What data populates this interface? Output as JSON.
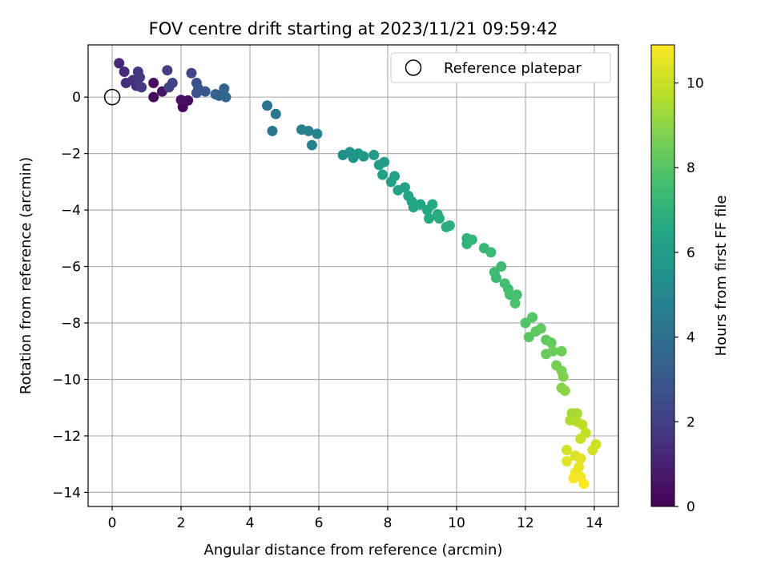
{
  "chart_data": {
    "type": "scatter",
    "title": "FOV centre drift starting at 2023/11/21 09:59:42",
    "xlabel": "Angular distance from reference (arcmin)",
    "ylabel": "Rotation from reference (arcmin)",
    "xlim": [
      -0.7,
      14.7
    ],
    "ylim": [
      -14.5,
      1.85
    ],
    "xticks": [
      0,
      2,
      4,
      6,
      8,
      10,
      12,
      14
    ],
    "yticks": [
      0,
      -2,
      -4,
      -6,
      -8,
      -10,
      -12,
      -14
    ],
    "grid": true,
    "legend": {
      "label": "Reference platepar",
      "placement": "upper right"
    },
    "reference_point": {
      "x": 0,
      "y": 0
    },
    "colorbar": {
      "label": "Hours from first FF file",
      "range": [
        0,
        10.9
      ],
      "ticks": [
        0,
        2,
        4,
        6,
        8,
        10
      ],
      "colormap": "viridis"
    },
    "points": [
      {
        "x": 1.2,
        "y": 0.0,
        "h": 0.3
      },
      {
        "x": 1.2,
        "y": 0.5,
        "h": 0.4
      },
      {
        "x": 1.45,
        "y": 0.2,
        "h": 0.6
      },
      {
        "x": 2.05,
        "y": -0.35,
        "h": 0.2
      },
      {
        "x": 2.1,
        "y": -0.15,
        "h": 0.3
      },
      {
        "x": 2.2,
        "y": -0.12,
        "h": 0.4
      },
      {
        "x": 2.0,
        "y": -0.1,
        "h": 0.5
      },
      {
        "x": 0.2,
        "y": 1.2,
        "h": 1.2
      },
      {
        "x": 0.35,
        "y": 0.9,
        "h": 1.3
      },
      {
        "x": 0.4,
        "y": 0.5,
        "h": 1.4
      },
      {
        "x": 0.6,
        "y": 0.6,
        "h": 1.5
      },
      {
        "x": 0.7,
        "y": 0.4,
        "h": 1.6
      },
      {
        "x": 0.75,
        "y": 0.9,
        "h": 1.7
      },
      {
        "x": 0.8,
        "y": 0.7,
        "h": 1.8
      },
      {
        "x": 0.85,
        "y": 0.35,
        "h": 1.9
      },
      {
        "x": 1.6,
        "y": 0.95,
        "h": 2.0
      },
      {
        "x": 1.65,
        "y": 0.35,
        "h": 2.1
      },
      {
        "x": 1.75,
        "y": 0.5,
        "h": 2.2
      },
      {
        "x": 2.3,
        "y": 0.85,
        "h": 2.4
      },
      {
        "x": 2.45,
        "y": 0.5,
        "h": 2.6
      },
      {
        "x": 2.5,
        "y": 0.3,
        "h": 2.7
      },
      {
        "x": 2.45,
        "y": 0.15,
        "h": 2.8
      },
      {
        "x": 2.7,
        "y": 0.2,
        "h": 3.0
      },
      {
        "x": 3.0,
        "y": 0.1,
        "h": 3.3
      },
      {
        "x": 3.1,
        "y": 0.05,
        "h": 3.4
      },
      {
        "x": 3.25,
        "y": 0.3,
        "h": 3.5
      },
      {
        "x": 3.3,
        "y": 0.0,
        "h": 3.6
      },
      {
        "x": 4.5,
        "y": -0.3,
        "h": 4.1
      },
      {
        "x": 4.65,
        "y": -1.2,
        "h": 4.2
      },
      {
        "x": 4.75,
        "y": -0.6,
        "h": 4.3
      },
      {
        "x": 5.5,
        "y": -1.15,
        "h": 4.6
      },
      {
        "x": 5.7,
        "y": -1.2,
        "h": 4.7
      },
      {
        "x": 5.8,
        "y": -1.7,
        "h": 4.8
      },
      {
        "x": 5.95,
        "y": -1.3,
        "h": 4.9
      },
      {
        "x": 6.7,
        "y": -2.05,
        "h": 5.4
      },
      {
        "x": 6.9,
        "y": -1.95,
        "h": 5.5
      },
      {
        "x": 7.0,
        "y": -2.15,
        "h": 5.6
      },
      {
        "x": 7.15,
        "y": -2.0,
        "h": 5.7
      },
      {
        "x": 7.3,
        "y": -2.1,
        "h": 5.8
      },
      {
        "x": 7.6,
        "y": -2.05,
        "h": 5.9
      },
      {
        "x": 7.75,
        "y": -2.4,
        "h": 6.0
      },
      {
        "x": 7.9,
        "y": -2.3,
        "h": 6.05
      },
      {
        "x": 7.85,
        "y": -2.75,
        "h": 6.1
      },
      {
        "x": 8.2,
        "y": -2.8,
        "h": 6.15
      },
      {
        "x": 8.1,
        "y": -3.0,
        "h": 6.2
      },
      {
        "x": 8.3,
        "y": -3.3,
        "h": 6.25
      },
      {
        "x": 8.5,
        "y": -3.2,
        "h": 6.3
      },
      {
        "x": 8.6,
        "y": -3.5,
        "h": 6.35
      },
      {
        "x": 8.7,
        "y": -3.7,
        "h": 6.4
      },
      {
        "x": 8.75,
        "y": -3.9,
        "h": 6.45
      },
      {
        "x": 8.95,
        "y": -3.8,
        "h": 6.5
      },
      {
        "x": 9.15,
        "y": -4.0,
        "h": 6.55
      },
      {
        "x": 9.3,
        "y": -3.8,
        "h": 6.6
      },
      {
        "x": 9.2,
        "y": -4.3,
        "h": 6.65
      },
      {
        "x": 9.45,
        "y": -4.15,
        "h": 6.7
      },
      {
        "x": 9.5,
        "y": -4.3,
        "h": 6.75
      },
      {
        "x": 9.7,
        "y": -4.6,
        "h": 6.8
      },
      {
        "x": 9.8,
        "y": -4.55,
        "h": 6.85
      },
      {
        "x": 10.3,
        "y": -5.0,
        "h": 7.0
      },
      {
        "x": 10.3,
        "y": -5.2,
        "h": 7.05
      },
      {
        "x": 10.45,
        "y": -5.05,
        "h": 7.1
      },
      {
        "x": 10.8,
        "y": -5.35,
        "h": 7.2
      },
      {
        "x": 11.0,
        "y": -5.5,
        "h": 7.3
      },
      {
        "x": 11.1,
        "y": -6.2,
        "h": 7.4
      },
      {
        "x": 11.15,
        "y": -6.4,
        "h": 7.45
      },
      {
        "x": 11.3,
        "y": -6.0,
        "h": 7.5
      },
      {
        "x": 11.4,
        "y": -6.6,
        "h": 7.55
      },
      {
        "x": 11.5,
        "y": -6.8,
        "h": 7.6
      },
      {
        "x": 11.55,
        "y": -7.0,
        "h": 7.65
      },
      {
        "x": 11.75,
        "y": -7.0,
        "h": 7.7
      },
      {
        "x": 11.7,
        "y": -7.3,
        "h": 7.75
      },
      {
        "x": 12.0,
        "y": -8.0,
        "h": 7.9
      },
      {
        "x": 12.2,
        "y": -7.8,
        "h": 8.0
      },
      {
        "x": 12.1,
        "y": -8.5,
        "h": 8.05
      },
      {
        "x": 12.3,
        "y": -8.3,
        "h": 8.1
      },
      {
        "x": 12.45,
        "y": -8.2,
        "h": 8.15
      },
      {
        "x": 12.6,
        "y": -8.6,
        "h": 8.2
      },
      {
        "x": 12.75,
        "y": -8.7,
        "h": 8.3
      },
      {
        "x": 12.6,
        "y": -9.1,
        "h": 8.35
      },
      {
        "x": 12.8,
        "y": -9.0,
        "h": 8.4
      },
      {
        "x": 13.05,
        "y": -9.0,
        "h": 8.5
      },
      {
        "x": 12.9,
        "y": -9.5,
        "h": 8.6
      },
      {
        "x": 13.05,
        "y": -9.7,
        "h": 8.7
      },
      {
        "x": 13.1,
        "y": -9.9,
        "h": 8.8
      },
      {
        "x": 13.05,
        "y": -10.3,
        "h": 8.9
      },
      {
        "x": 13.15,
        "y": -10.4,
        "h": 9.0
      },
      {
        "x": 13.35,
        "y": -11.2,
        "h": 9.4
      },
      {
        "x": 13.5,
        "y": -11.2,
        "h": 9.5
      },
      {
        "x": 13.3,
        "y": -11.45,
        "h": 9.6
      },
      {
        "x": 13.5,
        "y": -11.5,
        "h": 9.7
      },
      {
        "x": 13.65,
        "y": -11.6,
        "h": 9.8
      },
      {
        "x": 13.75,
        "y": -11.9,
        "h": 9.9
      },
      {
        "x": 13.6,
        "y": -12.1,
        "h": 10.0
      },
      {
        "x": 14.05,
        "y": -12.3,
        "h": 10.1
      },
      {
        "x": 13.95,
        "y": -12.5,
        "h": 10.15
      },
      {
        "x": 13.2,
        "y": -12.5,
        "h": 10.2
      },
      {
        "x": 13.45,
        "y": -12.7,
        "h": 10.3
      },
      {
        "x": 13.6,
        "y": -12.8,
        "h": 10.4
      },
      {
        "x": 13.2,
        "y": -12.9,
        "h": 10.45
      },
      {
        "x": 13.55,
        "y": -13.1,
        "h": 10.5
      },
      {
        "x": 13.45,
        "y": -13.3,
        "h": 10.6
      },
      {
        "x": 13.6,
        "y": -13.45,
        "h": 10.7
      },
      {
        "x": 13.4,
        "y": -13.5,
        "h": 10.8
      },
      {
        "x": 13.7,
        "y": -13.7,
        "h": 10.9
      }
    ]
  }
}
